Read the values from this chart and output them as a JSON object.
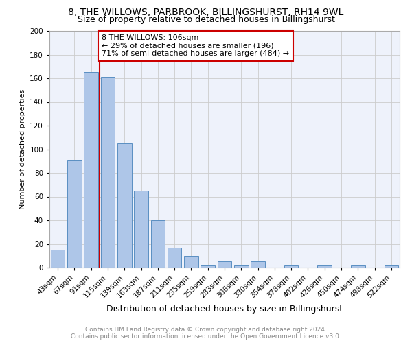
{
  "title": "8, THE WILLOWS, PARBROOK, BILLINGSHURST, RH14 9WL",
  "subtitle": "Size of property relative to detached houses in Billingshurst",
  "xlabel": "Distribution of detached houses by size in Billingshurst",
  "ylabel": "Number of detached properties",
  "categories": [
    "43sqm",
    "67sqm",
    "91sqm",
    "115sqm",
    "139sqm",
    "163sqm",
    "187sqm",
    "211sqm",
    "235sqm",
    "259sqm",
    "283sqm",
    "306sqm",
    "330sqm",
    "354sqm",
    "378sqm",
    "402sqm",
    "426sqm",
    "450sqm",
    "474sqm",
    "498sqm",
    "522sqm"
  ],
  "values": [
    15,
    91,
    165,
    161,
    105,
    65,
    40,
    17,
    10,
    2,
    5,
    2,
    5,
    0,
    2,
    0,
    2,
    0,
    2,
    0,
    2
  ],
  "bar_color": "#aec6e8",
  "bar_edge_color": "#5a8fc2",
  "vline_x": 2.5,
  "vline_color": "#cc0000",
  "annotation_text": "8 THE WILLOWS: 106sqm\n← 29% of detached houses are smaller (196)\n71% of semi-detached houses are larger (484) →",
  "annotation_box_color": "#ffffff",
  "annotation_box_edge": "#cc0000",
  "ylim": [
    0,
    200
  ],
  "yticks": [
    0,
    20,
    40,
    60,
    80,
    100,
    120,
    140,
    160,
    180,
    200
  ],
  "grid_color": "#cccccc",
  "bg_color": "#eef2fb",
  "footer_line1": "Contains HM Land Registry data © Crown copyright and database right 2024.",
  "footer_line2": "Contains public sector information licensed under the Open Government Licence v3.0.",
  "title_fontsize": 10,
  "subtitle_fontsize": 9,
  "annotation_fontsize": 8,
  "xlabel_fontsize": 9,
  "ylabel_fontsize": 8,
  "tick_fontsize": 7.5,
  "footer_fontsize": 6.5
}
